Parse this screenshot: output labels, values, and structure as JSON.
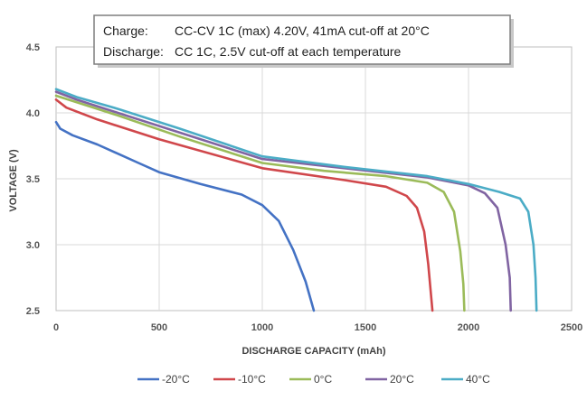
{
  "chart_data": {
    "type": "line",
    "title": "",
    "xlabel": "DISCHARGE CAPACITY (mAh)",
    "ylabel": "VOLTAGE (V)",
    "xlim": [
      0,
      2500
    ],
    "ylim": [
      2.5,
      4.5
    ],
    "x_ticks": [
      "0",
      "500",
      "1000",
      "1500",
      "2000",
      "2500"
    ],
    "y_ticks": [
      "2.5",
      "3.0",
      "3.5",
      "4.0",
      "4.5"
    ],
    "grid": true,
    "legend_position": "bottom",
    "annotation": {
      "rows": [
        {
          "label": "Charge:",
          "text": "CC-CV 1C (max) 4.20V, 41mA cut-off at 20°C"
        },
        {
          "label": "Discharge:",
          "text": "CC 1C, 2.5V cut-off at each temperature"
        }
      ]
    },
    "series": [
      {
        "name": "-20°C",
        "color": "#4472C4",
        "points": [
          [
            0,
            3.93
          ],
          [
            20,
            3.88
          ],
          [
            80,
            3.83
          ],
          [
            200,
            3.76
          ],
          [
            400,
            3.62
          ],
          [
            500,
            3.55
          ],
          [
            700,
            3.46
          ],
          [
            900,
            3.38
          ],
          [
            1000,
            3.3
          ],
          [
            1080,
            3.18
          ],
          [
            1150,
            2.96
          ],
          [
            1210,
            2.72
          ],
          [
            1250,
            2.5
          ]
        ]
      },
      {
        "name": "-10°C",
        "color": "#D0474B",
        "points": [
          [
            0,
            4.1
          ],
          [
            50,
            4.04
          ],
          [
            200,
            3.95
          ],
          [
            500,
            3.8
          ],
          [
            1000,
            3.58
          ],
          [
            1400,
            3.49
          ],
          [
            1600,
            3.44
          ],
          [
            1700,
            3.37
          ],
          [
            1750,
            3.28
          ],
          [
            1785,
            3.1
          ],
          [
            1805,
            2.85
          ],
          [
            1825,
            2.5
          ]
        ]
      },
      {
        "name": "0°C",
        "color": "#9BBB59",
        "points": [
          [
            0,
            4.13
          ],
          [
            100,
            4.08
          ],
          [
            300,
            3.98
          ],
          [
            600,
            3.82
          ],
          [
            1000,
            3.62
          ],
          [
            1300,
            3.56
          ],
          [
            1600,
            3.52
          ],
          [
            1800,
            3.47
          ],
          [
            1880,
            3.4
          ],
          [
            1930,
            3.25
          ],
          [
            1960,
            2.95
          ],
          [
            1975,
            2.7
          ],
          [
            1980,
            2.5
          ]
        ]
      },
      {
        "name": "20°C",
        "color": "#8064A2",
        "points": [
          [
            0,
            4.16
          ],
          [
            100,
            4.1
          ],
          [
            300,
            4.0
          ],
          [
            600,
            3.85
          ],
          [
            1000,
            3.65
          ],
          [
            1400,
            3.58
          ],
          [
            1800,
            3.51
          ],
          [
            2000,
            3.45
          ],
          [
            2080,
            3.39
          ],
          [
            2140,
            3.28
          ],
          [
            2180,
            3.0
          ],
          [
            2200,
            2.75
          ],
          [
            2205,
            2.5
          ]
        ]
      },
      {
        "name": "40°C",
        "color": "#4BACC6",
        "points": [
          [
            0,
            4.18
          ],
          [
            100,
            4.12
          ],
          [
            300,
            4.03
          ],
          [
            600,
            3.88
          ],
          [
            1000,
            3.67
          ],
          [
            1400,
            3.59
          ],
          [
            1800,
            3.52
          ],
          [
            2000,
            3.46
          ],
          [
            2150,
            3.4
          ],
          [
            2250,
            3.35
          ],
          [
            2290,
            3.25
          ],
          [
            2315,
            3.0
          ],
          [
            2325,
            2.75
          ],
          [
            2330,
            2.5
          ]
        ]
      }
    ]
  }
}
